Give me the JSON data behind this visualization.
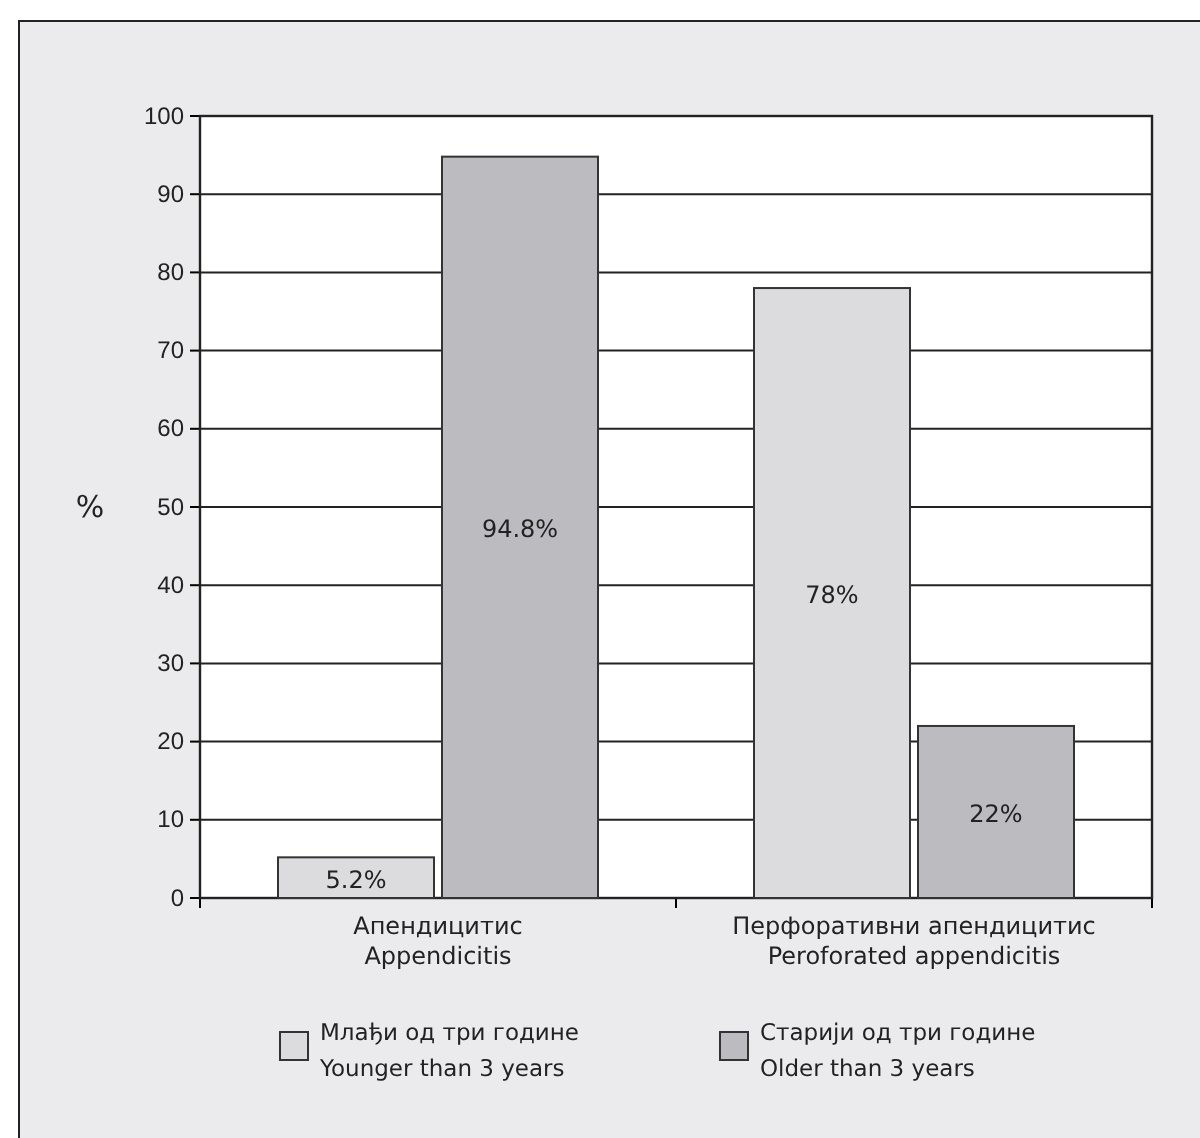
{
  "chart_data": {
    "type": "bar",
    "ylabel": "%",
    "categories": [
      "Апендицитис\nAppendicitis",
      "Перфоративни апендицитис\nPeroforated appendicitis"
    ],
    "series": [
      {
        "name": "Млађи од три године\nYounger than 3 years",
        "color": "#dcdcde",
        "values": [
          5.2,
          78
        ],
        "value_labels": [
          "5.2%",
          "78%"
        ]
      },
      {
        "name": "Старији од три године\nOlder than 3 years",
        "color": "#bcbcc0",
        "values": [
          94.8,
          22
        ],
        "value_labels": [
          "94.8%",
          "22%"
        ]
      }
    ],
    "ylim": [
      0,
      100
    ],
    "yticks": [
      0,
      10,
      20,
      30,
      40,
      50,
      60,
      70,
      80,
      90,
      100
    ],
    "grid": "y",
    "legend": "bottom"
  }
}
